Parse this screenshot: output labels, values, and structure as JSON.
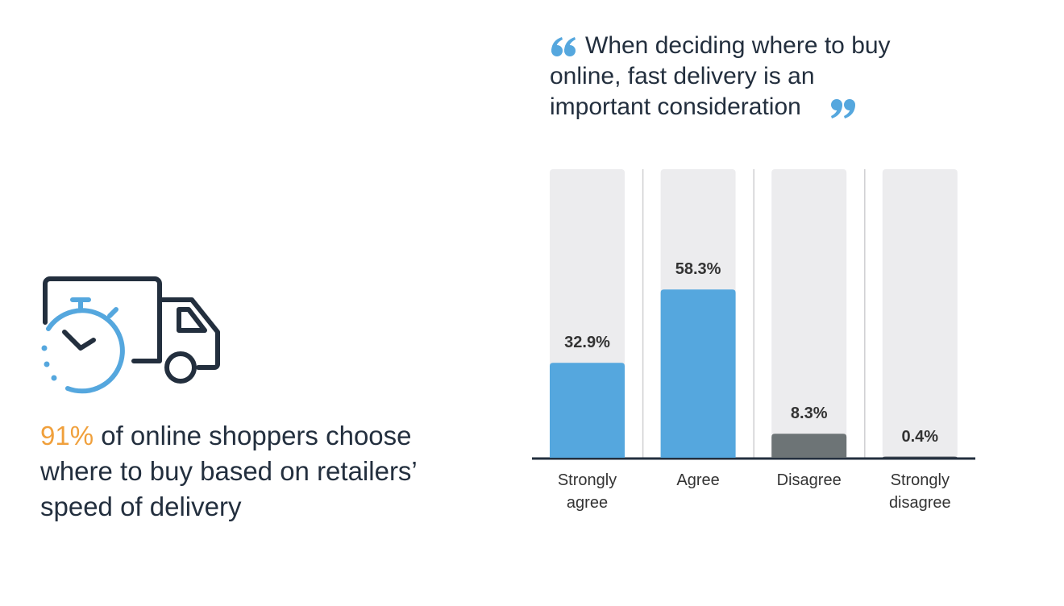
{
  "headline_stat": "91%",
  "headline_text": "of online shoppers choose where to buy based on retailers’ speed of delivery",
  "chart_data": {
    "type": "bar",
    "title": "When deciding where to buy online, fast delivery is an important consideration",
    "categories": [
      "Strongly agree",
      "Agree",
      "Disagree",
      "Strongly disagree"
    ],
    "values": [
      32.9,
      58.3,
      8.3,
      0.4
    ],
    "value_labels": [
      "32.9%",
      "58.3%",
      "8.3%",
      "0.4%"
    ],
    "colors": [
      "#55a7de",
      "#55a7de",
      "#6d7476",
      "#3b4450"
    ],
    "ylim": [
      0,
      100
    ]
  }
}
